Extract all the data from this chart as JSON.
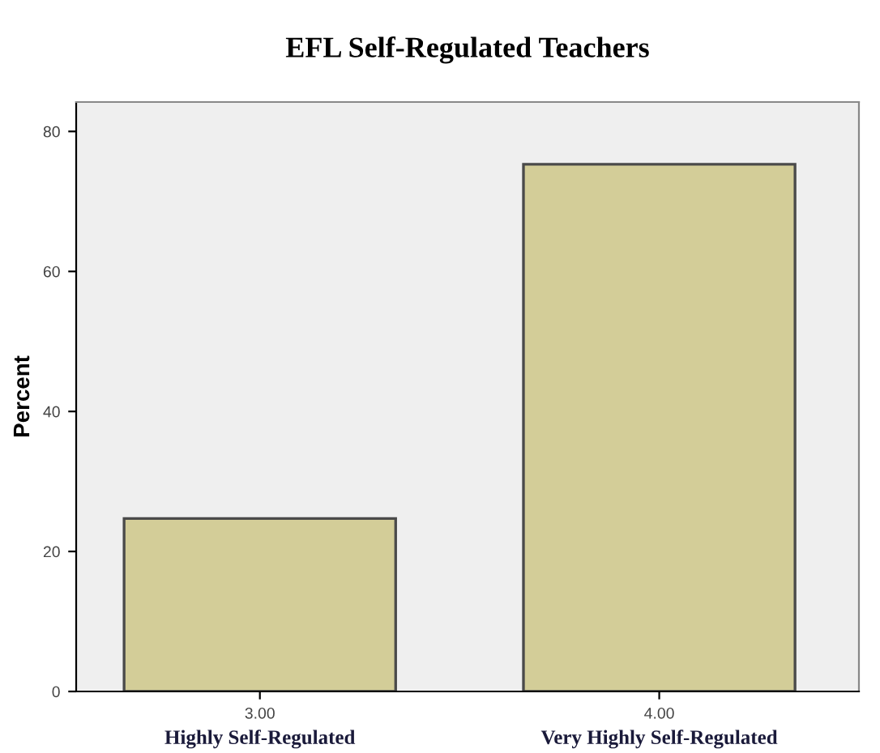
{
  "chart_data": {
    "type": "bar",
    "title": "EFL Self-Regulated Teachers",
    "ylabel": "Percent",
    "categories": [
      "3.00",
      "4.00"
    ],
    "values": [
      24.7,
      75.3
    ],
    "color": "#d3cd98",
    "ylim": [
      0,
      84.2
    ],
    "yticks": [
      0,
      20,
      40,
      60,
      80
    ],
    "grid": false,
    "annotations": [
      "Highly Self-Regulated",
      "Very Highly Self-Regulated"
    ]
  }
}
